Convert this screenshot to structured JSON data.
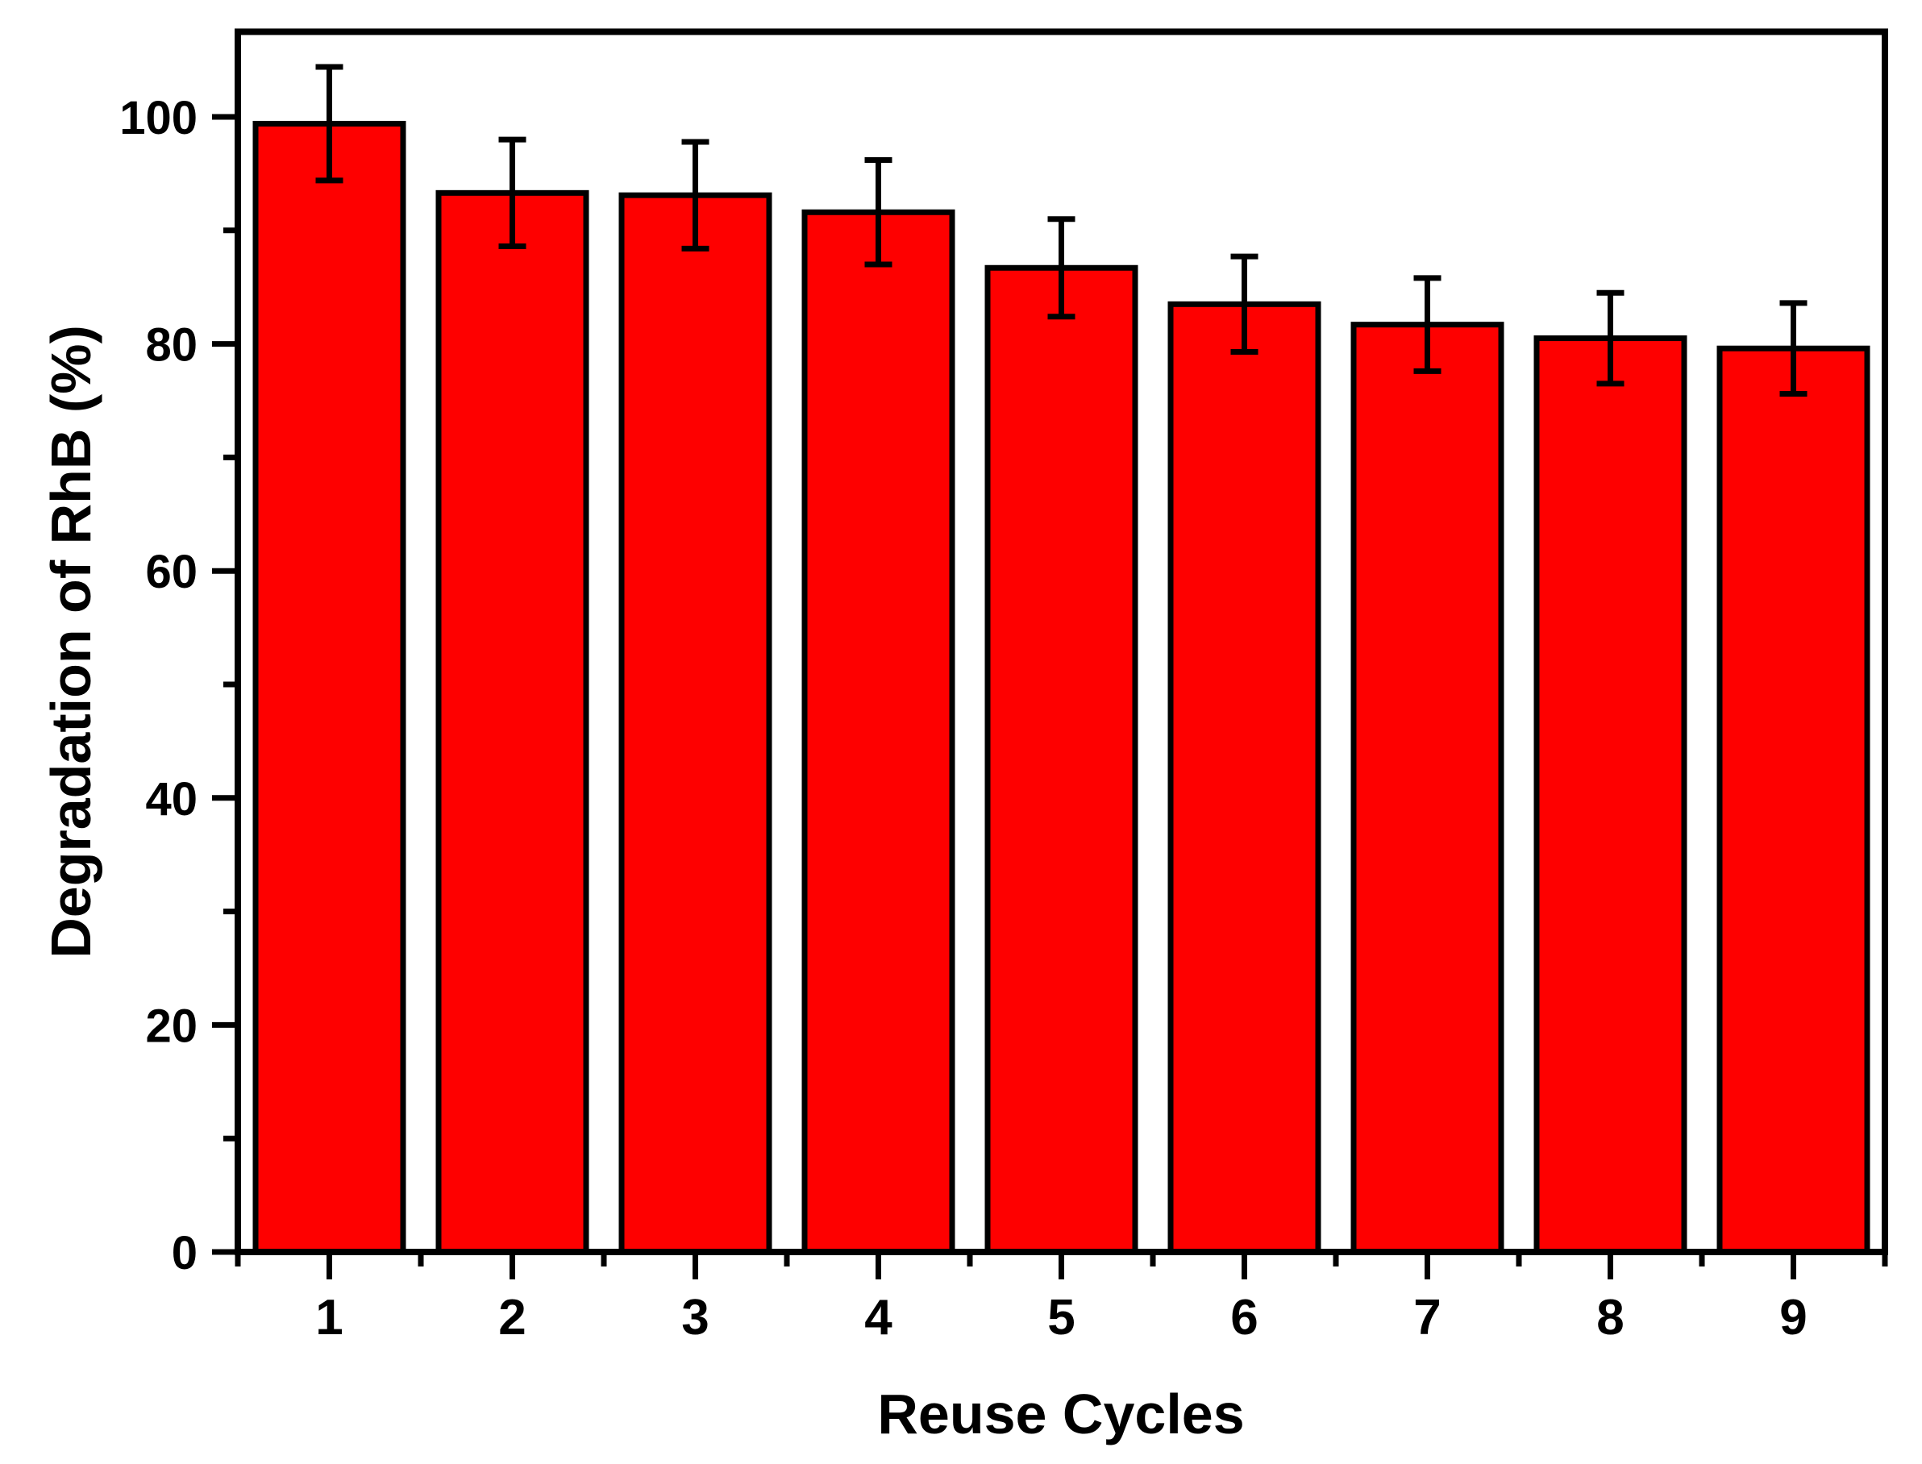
{
  "chart_data": {
    "type": "bar",
    "title": "",
    "xlabel": "Reuse Cycles",
    "ylabel": "Degradation of RhB (%)",
    "categories": [
      "1",
      "2",
      "3",
      "4",
      "5",
      "6",
      "7",
      "8",
      "9"
    ],
    "values": [
      99.4,
      93.3,
      93.1,
      91.6,
      86.7,
      83.5,
      81.7,
      80.5,
      79.6
    ],
    "errors": [
      5.0,
      4.7,
      4.7,
      4.6,
      4.3,
      4.2,
      4.1,
      4.0,
      4.0
    ],
    "xlim": [
      0.5,
      9.5
    ],
    "ylim": [
      0,
      107.5
    ],
    "y_major_ticks": [
      0,
      20,
      40,
      60,
      80,
      100
    ],
    "y_minor_ticks": [
      10,
      30,
      50,
      70,
      90
    ],
    "x_major_tick_positions": [
      1,
      2,
      3,
      4,
      5,
      6,
      7,
      8,
      9
    ],
    "x_minor_tick_positions": [
      0.5,
      1.5,
      2.5,
      3.5,
      4.5,
      5.5,
      6.5,
      7.5,
      8.5,
      9.5
    ],
    "bar_color": "#fe0000",
    "bar_border_color": "#000000",
    "error_bar_color": "#000000",
    "axis_color": "#000000",
    "text_color": "#000000",
    "background_color": "#ffffff",
    "grid": "off",
    "legend": "none"
  }
}
